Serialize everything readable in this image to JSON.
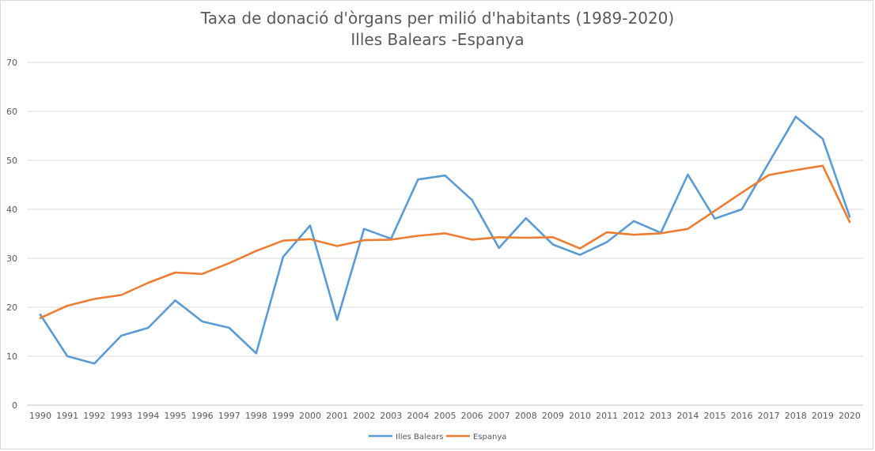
{
  "chart_data": {
    "type": "line",
    "title": "Taxa de donació d'òrgans per milió d'habitants (1989-2020)",
    "subtitle": "Illes Balears -Espanya",
    "xlabel": "",
    "ylabel": "",
    "ylim": [
      0,
      70
    ],
    "y_ticks": [
      "0",
      "10",
      "20",
      "30",
      "40",
      "50",
      "60",
      "70"
    ],
    "grid": true,
    "legend_position": "bottom",
    "categories": [
      "1990",
      "1991",
      "1992",
      "1993",
      "1994",
      "1995",
      "1996",
      "1997",
      "1998",
      "1999",
      "2000",
      "2001",
      "2002",
      "2003",
      "2004",
      "2005",
      "2006",
      "2007",
      "2008",
      "2009",
      "2010",
      "2011",
      "2012",
      "2013",
      "2014",
      "2015",
      "2016",
      "2017",
      "2018",
      "2019",
      "2020"
    ],
    "series": [
      {
        "name": "Illes Balears",
        "color": "#5b9bd5",
        "values": [
          18.5,
          10.0,
          8.5,
          14.2,
          15.8,
          21.4,
          17.1,
          15.8,
          10.6,
          30.3,
          36.7,
          17.4,
          36.0,
          34.0,
          46.1,
          46.9,
          41.9,
          32.1,
          38.2,
          32.8,
          30.7,
          33.3,
          37.6,
          35.2,
          47.1,
          38.1,
          40.0,
          49.5,
          58.9,
          54.4,
          38.5
        ]
      },
      {
        "name": "Espanya",
        "color": "#ed7d31",
        "values": [
          17.8,
          20.3,
          21.7,
          22.5,
          25.0,
          27.1,
          26.8,
          29.0,
          31.5,
          33.6,
          33.9,
          32.5,
          33.7,
          33.8,
          34.6,
          35.1,
          33.8,
          34.3,
          34.2,
          34.3,
          32.0,
          35.3,
          34.8,
          35.1,
          36.0,
          39.7,
          43.4,
          47.0,
          48.0,
          48.9,
          37.4
        ]
      }
    ]
  }
}
